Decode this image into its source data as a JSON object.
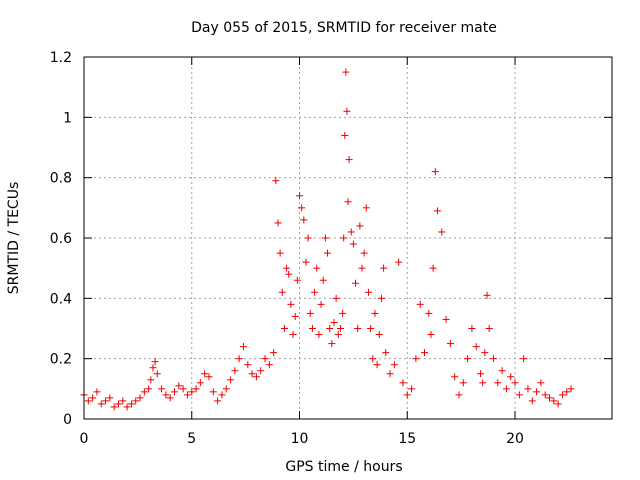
{
  "chart_data": {
    "type": "scatter",
    "title": "Day 055 of 2015, SRMTID for receiver mate",
    "xlabel": "GPS time / hours",
    "ylabel": "SRMTID / TECUs",
    "xlim": [
      0,
      24.5
    ],
    "ylim": [
      0,
      1.2
    ],
    "xticks": [
      0,
      5,
      10,
      15,
      20
    ],
    "xtick_labels": [
      "0",
      "5",
      "10",
      "15",
      "20"
    ],
    "yticks": [
      0,
      0.2,
      0.4,
      0.6,
      0.8,
      1,
      1.2
    ],
    "ytick_labels": [
      "0",
      "0.2",
      "0.4",
      "0.6",
      "0.8",
      "1",
      "1.2"
    ],
    "grid": true,
    "marker": "+",
    "color": "#ee0000",
    "series": [
      {
        "name": "SRMTID (mate)",
        "x": [
          0.0,
          0.2,
          0.4,
          0.6,
          0.8,
          1.0,
          1.2,
          1.4,
          1.6,
          1.8,
          2.0,
          2.2,
          2.4,
          2.6,
          2.8,
          3.0,
          3.1,
          3.2,
          3.3,
          3.4,
          3.6,
          3.8,
          4.0,
          4.2,
          4.4,
          4.6,
          4.8,
          5.0,
          5.2,
          5.4,
          5.6,
          5.8,
          6.0,
          6.2,
          6.4,
          6.6,
          6.8,
          7.0,
          7.2,
          7.4,
          7.6,
          7.8,
          8.0,
          8.2,
          8.4,
          8.6,
          8.8,
          8.9,
          9.0,
          9.1,
          9.2,
          9.3,
          9.4,
          9.5,
          9.6,
          9.7,
          9.8,
          9.9,
          10.0,
          10.1,
          10.2,
          10.3,
          10.4,
          10.5,
          10.6,
          10.7,
          10.8,
          10.9,
          11.0,
          11.1,
          11.2,
          11.3,
          11.4,
          11.5,
          11.6,
          11.7,
          11.8,
          11.9,
          12.0,
          12.05,
          12.1,
          12.15,
          12.2,
          12.25,
          12.3,
          12.4,
          12.5,
          12.6,
          12.7,
          12.8,
          12.9,
          13.0,
          13.1,
          13.2,
          13.3,
          13.4,
          13.5,
          13.6,
          13.7,
          13.8,
          13.9,
          14.0,
          14.2,
          14.4,
          14.6,
          14.8,
          15.0,
          15.2,
          15.4,
          15.6,
          15.8,
          16.0,
          16.1,
          16.2,
          16.3,
          16.4,
          16.6,
          16.8,
          17.0,
          17.2,
          17.4,
          17.6,
          17.8,
          18.0,
          18.2,
          18.4,
          18.5,
          18.6,
          18.7,
          18.8,
          19.0,
          19.2,
          19.4,
          19.6,
          19.8,
          20.0,
          20.2,
          20.4,
          20.6,
          20.8,
          21.0,
          21.2,
          21.4,
          21.6,
          21.8,
          22.0,
          22.2,
          22.4,
          22.6
        ],
        "y": [
          0.08,
          0.06,
          0.07,
          0.09,
          0.05,
          0.06,
          0.07,
          0.04,
          0.05,
          0.06,
          0.04,
          0.05,
          0.06,
          0.07,
          0.09,
          0.1,
          0.13,
          0.17,
          0.19,
          0.15,
          0.1,
          0.08,
          0.07,
          0.09,
          0.11,
          0.1,
          0.08,
          0.09,
          0.1,
          0.12,
          0.15,
          0.14,
          0.09,
          0.06,
          0.08,
          0.1,
          0.13,
          0.16,
          0.2,
          0.24,
          0.18,
          0.15,
          0.14,
          0.16,
          0.2,
          0.18,
          0.22,
          0.79,
          0.65,
          0.55,
          0.42,
          0.3,
          0.5,
          0.48,
          0.38,
          0.28,
          0.34,
          0.46,
          0.74,
          0.7,
          0.66,
          0.52,
          0.6,
          0.35,
          0.3,
          0.42,
          0.5,
          0.28,
          0.38,
          0.46,
          0.6,
          0.55,
          0.3,
          0.25,
          0.32,
          0.4,
          0.28,
          0.3,
          0.35,
          0.6,
          0.94,
          1.15,
          1.02,
          0.72,
          0.86,
          0.62,
          0.58,
          0.45,
          0.3,
          0.64,
          0.5,
          0.55,
          0.7,
          0.42,
          0.3,
          0.2,
          0.35,
          0.18,
          0.28,
          0.4,
          0.5,
          0.22,
          0.15,
          0.18,
          0.52,
          0.12,
          0.08,
          0.1,
          0.2,
          0.38,
          0.22,
          0.35,
          0.28,
          0.5,
          0.82,
          0.69,
          0.62,
          0.33,
          0.25,
          0.14,
          0.08,
          0.12,
          0.2,
          0.3,
          0.24,
          0.15,
          0.12,
          0.22,
          0.41,
          0.3,
          0.2,
          0.12,
          0.16,
          0.1,
          0.14,
          0.12,
          0.08,
          0.2,
          0.1,
          0.06,
          0.09,
          0.12,
          0.08,
          0.07,
          0.06,
          0.05,
          0.08,
          0.09,
          0.1
        ]
      }
    ]
  }
}
